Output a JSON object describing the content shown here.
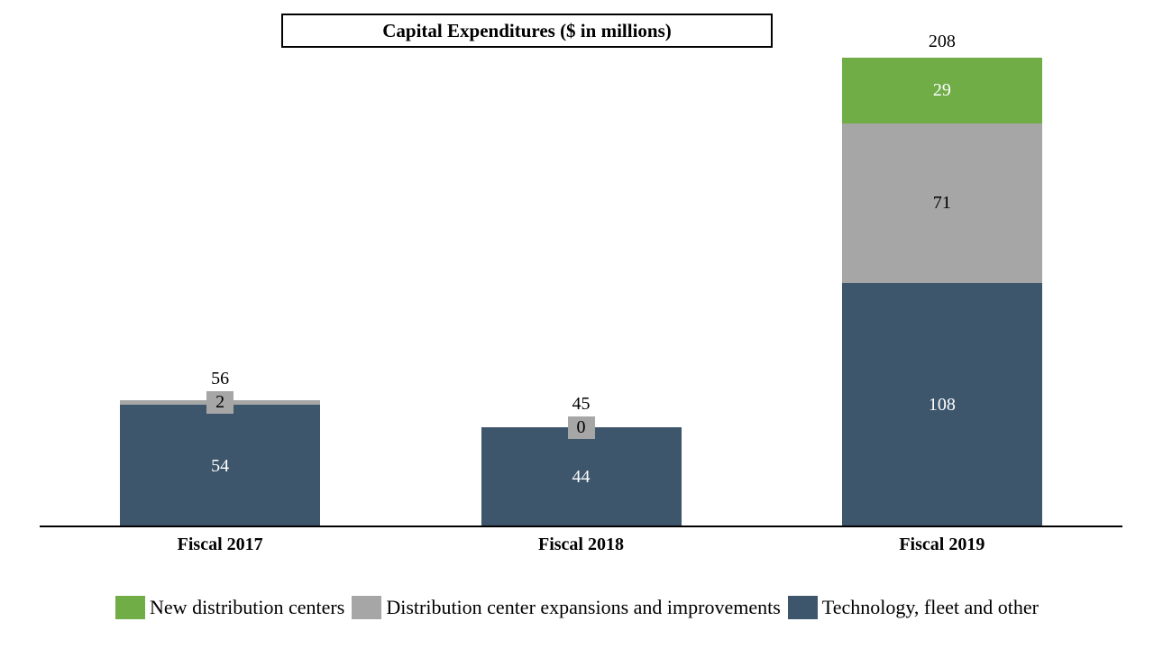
{
  "title": "Capital Expenditures ($ in millions)",
  "chart_data": {
    "type": "bar",
    "stacked": true,
    "title": "Capital Expenditures ($ in millions)",
    "categories": [
      "Fiscal 2017",
      "Fiscal 2018",
      "Fiscal 2019"
    ],
    "series": [
      {
        "name": "Technology, fleet and other",
        "color": "#3e566c",
        "label_color": "#ffffff",
        "values": [
          54,
          44,
          108
        ]
      },
      {
        "name": "Distribution center expansions and improvements",
        "color": "#a6a6a6",
        "label_color": "#000000",
        "values": [
          2,
          0,
          71
        ]
      },
      {
        "name": "New distribution centers",
        "color": "#70ad47",
        "label_color": "#ffffff",
        "values": [
          null,
          null,
          29
        ]
      }
    ],
    "stack_order": "bottom-to-top",
    "totals": [
      56,
      45,
      208
    ],
    "ylim": [
      0,
      225
    ],
    "grid": false,
    "axis_color": "#000000",
    "legend_position": "bottom",
    "legend": [
      {
        "label": "New distribution centers",
        "color": "#70ad47"
      },
      {
        "label": "Distribution center expansions and improvements",
        "color": "#a6a6a6"
      },
      {
        "label": "Technology, fleet and other",
        "color": "#3e566c"
      }
    ]
  }
}
